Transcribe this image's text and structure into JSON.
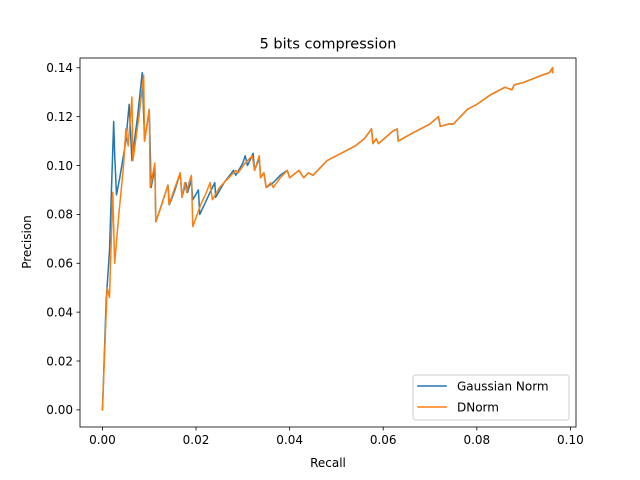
{
  "chart_data": {
    "type": "line",
    "title": "5 bits compression",
    "xlabel": "Recall",
    "ylabel": "Precision",
    "xlim": [
      -0.0048,
      0.1012
    ],
    "ylim": [
      -0.007,
      0.144
    ],
    "xticks": [
      0.0,
      0.02,
      0.04,
      0.06,
      0.08,
      0.1
    ],
    "xtick_labels": [
      "0.00",
      "0.02",
      "0.04",
      "0.06",
      "0.08",
      "0.10"
    ],
    "yticks": [
      0.0,
      0.02,
      0.04,
      0.06,
      0.08,
      0.1,
      0.12,
      0.14
    ],
    "ytick_labels": [
      "0.00",
      "0.02",
      "0.04",
      "0.06",
      "0.08",
      "0.10",
      "0.12",
      "0.14"
    ],
    "grid": false,
    "legend_position": "lower-right",
    "series": [
      {
        "name": "Gaussian Norm",
        "color": "#1f77b4",
        "points": [
          [
            0.0,
            0.0
          ],
          [
            0.0008,
            0.045
          ],
          [
            0.0015,
            0.065
          ],
          [
            0.0024,
            0.118
          ],
          [
            0.0026,
            0.105
          ],
          [
            0.003,
            0.088
          ],
          [
            0.0037,
            0.095
          ],
          [
            0.005,
            0.11
          ],
          [
            0.0057,
            0.125
          ],
          [
            0.0063,
            0.102
          ],
          [
            0.0075,
            0.12
          ],
          [
            0.0085,
            0.138
          ],
          [
            0.009,
            0.11
          ],
          [
            0.01,
            0.123
          ],
          [
            0.0104,
            0.091
          ],
          [
            0.0112,
            0.099
          ],
          [
            0.0114,
            0.077
          ],
          [
            0.0123,
            0.082
          ],
          [
            0.014,
            0.092
          ],
          [
            0.0143,
            0.084
          ],
          [
            0.0155,
            0.09
          ],
          [
            0.0166,
            0.097
          ],
          [
            0.017,
            0.087
          ],
          [
            0.0178,
            0.093
          ],
          [
            0.0182,
            0.089
          ],
          [
            0.019,
            0.094
          ],
          [
            0.0193,
            0.086
          ],
          [
            0.0205,
            0.09
          ],
          [
            0.0208,
            0.08
          ],
          [
            0.0225,
            0.087
          ],
          [
            0.024,
            0.093
          ],
          [
            0.0242,
            0.087
          ],
          [
            0.026,
            0.093
          ],
          [
            0.028,
            0.098
          ],
          [
            0.0285,
            0.096
          ],
          [
            0.03,
            0.101
          ],
          [
            0.0305,
            0.104
          ],
          [
            0.031,
            0.1
          ],
          [
            0.0322,
            0.105
          ],
          [
            0.0325,
            0.098
          ],
          [
            0.0335,
            0.103
          ],
          [
            0.0338,
            0.095
          ],
          [
            0.0345,
            0.097
          ],
          [
            0.035,
            0.091
          ],
          [
            0.0365,
            0.093
          ],
          [
            0.038,
            0.096
          ],
          [
            0.0395,
            0.098
          ],
          [
            0.04,
            0.095
          ],
          [
            0.042,
            0.098
          ],
          [
            0.043,
            0.095
          ],
          [
            0.044,
            0.097
          ],
          [
            0.045,
            0.096
          ],
          [
            0.048,
            0.102
          ],
          [
            0.05,
            0.104
          ],
          [
            0.052,
            0.106
          ],
          [
            0.054,
            0.108
          ],
          [
            0.056,
            0.111
          ],
          [
            0.0575,
            0.115
          ],
          [
            0.0578,
            0.109
          ],
          [
            0.0585,
            0.111
          ],
          [
            0.059,
            0.109
          ],
          [
            0.062,
            0.114
          ],
          [
            0.063,
            0.115
          ],
          [
            0.0632,
            0.11
          ],
          [
            0.066,
            0.113
          ],
          [
            0.07,
            0.117
          ],
          [
            0.0718,
            0.12
          ],
          [
            0.0722,
            0.116
          ],
          [
            0.074,
            0.117
          ],
          [
            0.075,
            0.117
          ],
          [
            0.077,
            0.121
          ],
          [
            0.078,
            0.123
          ],
          [
            0.079,
            0.124
          ],
          [
            0.08,
            0.125
          ],
          [
            0.0815,
            0.127
          ],
          [
            0.083,
            0.129
          ],
          [
            0.086,
            0.132
          ],
          [
            0.0875,
            0.131
          ],
          [
            0.088,
            0.133
          ],
          [
            0.09,
            0.134
          ],
          [
            0.094,
            0.137
          ],
          [
            0.0955,
            0.138
          ],
          [
            0.0962,
            0.14
          ],
          [
            0.0962,
            0.138
          ]
        ]
      },
      {
        "name": "DNorm",
        "color": "#ff7f0e",
        "points": [
          [
            0.0,
            0.0
          ],
          [
            0.001,
            0.05
          ],
          [
            0.0015,
            0.046
          ],
          [
            0.0022,
            0.089
          ],
          [
            0.0026,
            0.06
          ],
          [
            0.0035,
            0.08
          ],
          [
            0.0045,
            0.1
          ],
          [
            0.005,
            0.115
          ],
          [
            0.0055,
            0.108
          ],
          [
            0.0063,
            0.128
          ],
          [
            0.0065,
            0.102
          ],
          [
            0.0078,
            0.12
          ],
          [
            0.0088,
            0.137
          ],
          [
            0.009,
            0.11
          ],
          [
            0.0098,
            0.12
          ],
          [
            0.01,
            0.123
          ],
          [
            0.0102,
            0.091
          ],
          [
            0.0112,
            0.101
          ],
          [
            0.0114,
            0.077
          ],
          [
            0.0125,
            0.083
          ],
          [
            0.014,
            0.092
          ],
          [
            0.0142,
            0.084
          ],
          [
            0.0155,
            0.091
          ],
          [
            0.0166,
            0.097
          ],
          [
            0.017,
            0.087
          ],
          [
            0.0176,
            0.093
          ],
          [
            0.018,
            0.089
          ],
          [
            0.0185,
            0.093
          ],
          [
            0.019,
            0.096
          ],
          [
            0.0193,
            0.075
          ],
          [
            0.021,
            0.084
          ],
          [
            0.0222,
            0.089
          ],
          [
            0.023,
            0.093
          ],
          [
            0.0235,
            0.086
          ],
          [
            0.025,
            0.091
          ],
          [
            0.0275,
            0.096
          ],
          [
            0.0285,
            0.098
          ],
          [
            0.029,
            0.097
          ],
          [
            0.0305,
            0.101
          ],
          [
            0.032,
            0.104
          ],
          [
            0.0325,
            0.098
          ],
          [
            0.0335,
            0.104
          ],
          [
            0.0338,
            0.095
          ],
          [
            0.0345,
            0.097
          ],
          [
            0.035,
            0.091
          ],
          [
            0.036,
            0.093
          ],
          [
            0.0365,
            0.091
          ],
          [
            0.038,
            0.095
          ],
          [
            0.0395,
            0.098
          ],
          [
            0.04,
            0.095
          ],
          [
            0.042,
            0.098
          ],
          [
            0.043,
            0.095
          ],
          [
            0.044,
            0.097
          ],
          [
            0.045,
            0.096
          ],
          [
            0.048,
            0.102
          ],
          [
            0.05,
            0.104
          ],
          [
            0.052,
            0.106
          ],
          [
            0.054,
            0.108
          ],
          [
            0.056,
            0.111
          ],
          [
            0.0575,
            0.115
          ],
          [
            0.0578,
            0.109
          ],
          [
            0.0585,
            0.111
          ],
          [
            0.059,
            0.109
          ],
          [
            0.062,
            0.114
          ],
          [
            0.063,
            0.115
          ],
          [
            0.0632,
            0.11
          ],
          [
            0.066,
            0.113
          ],
          [
            0.07,
            0.117
          ],
          [
            0.0718,
            0.12
          ],
          [
            0.0722,
            0.116
          ],
          [
            0.074,
            0.117
          ],
          [
            0.075,
            0.117
          ],
          [
            0.077,
            0.121
          ],
          [
            0.078,
            0.123
          ],
          [
            0.079,
            0.124
          ],
          [
            0.08,
            0.125
          ],
          [
            0.0815,
            0.127
          ],
          [
            0.083,
            0.129
          ],
          [
            0.086,
            0.132
          ],
          [
            0.0875,
            0.131
          ],
          [
            0.088,
            0.133
          ],
          [
            0.09,
            0.134
          ],
          [
            0.094,
            0.137
          ],
          [
            0.0955,
            0.138
          ],
          [
            0.0962,
            0.14
          ],
          [
            0.0962,
            0.138
          ]
        ]
      }
    ]
  }
}
